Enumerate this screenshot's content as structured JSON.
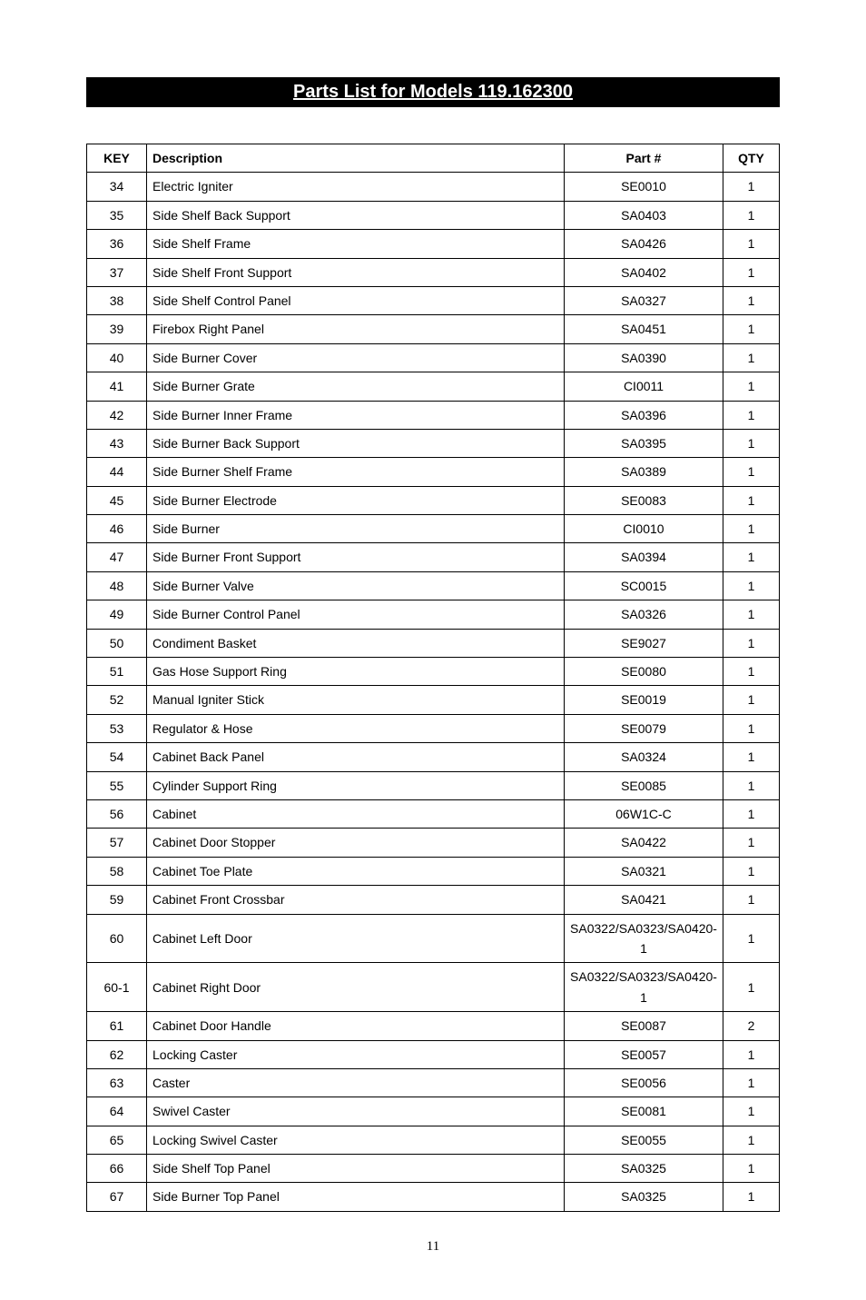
{
  "title": "Parts List for Models 119.162300",
  "columns": [
    "KEY",
    "Description",
    "Part #",
    "QTY"
  ],
  "rows": [
    {
      "key": "34",
      "description": "Electric Igniter",
      "part": "SE0010",
      "qty": "1"
    },
    {
      "key": "35",
      "description": "Side Shelf Back Support",
      "part": "SA0403",
      "qty": "1"
    },
    {
      "key": "36",
      "description": "Side Shelf Frame",
      "part": "SA0426",
      "qty": "1"
    },
    {
      "key": "37",
      "description": "Side Shelf Front Support",
      "part": "SA0402",
      "qty": "1"
    },
    {
      "key": "38",
      "description": "Side Shelf Control Panel",
      "part": "SA0327",
      "qty": "1"
    },
    {
      "key": "39",
      "description": "Firebox Right Panel",
      "part": "SA0451",
      "qty": "1"
    },
    {
      "key": "40",
      "description": "Side Burner Cover",
      "part": "SA0390",
      "qty": "1"
    },
    {
      "key": "41",
      "description": "Side Burner Grate",
      "part": "CI0011",
      "qty": "1"
    },
    {
      "key": "42",
      "description": "Side Burner Inner Frame",
      "part": "SA0396",
      "qty": "1"
    },
    {
      "key": "43",
      "description": "Side Burner Back Support",
      "part": "SA0395",
      "qty": "1"
    },
    {
      "key": "44",
      "description": "Side Burner Shelf Frame",
      "part": "SA0389",
      "qty": "1"
    },
    {
      "key": "45",
      "description": "Side Burner Electrode",
      "part": "SE0083",
      "qty": "1"
    },
    {
      "key": "46",
      "description": "Side Burner",
      "part": "CI0010",
      "qty": "1"
    },
    {
      "key": "47",
      "description": "Side Burner Front Support",
      "part": "SA0394",
      "qty": "1"
    },
    {
      "key": "48",
      "description": "Side Burner Valve",
      "part": "SC0015",
      "qty": "1"
    },
    {
      "key": "49",
      "description": "Side Burner Control Panel",
      "part": "SA0326",
      "qty": "1"
    },
    {
      "key": "50",
      "description": "Condiment Basket",
      "part": "SE9027",
      "qty": "1"
    },
    {
      "key": "51",
      "description": "Gas Hose Support Ring",
      "part": "SE0080",
      "qty": "1"
    },
    {
      "key": "52",
      "description": "Manual Igniter Stick",
      "part": "SE0019",
      "qty": "1"
    },
    {
      "key": "53",
      "description": "Regulator & Hose",
      "part": "SE0079",
      "qty": "1"
    },
    {
      "key": "54",
      "description": "Cabinet Back Panel",
      "part": "SA0324",
      "qty": "1"
    },
    {
      "key": "55",
      "description": "Cylinder Support Ring",
      "part": "SE0085",
      "qty": "1"
    },
    {
      "key": "56",
      "description": "Cabinet",
      "part": "06W1C-C",
      "qty": "1"
    },
    {
      "key": "57",
      "description": "Cabinet Door Stopper",
      "part": "SA0422",
      "qty": "1"
    },
    {
      "key": "58",
      "description": "Cabinet Toe Plate",
      "part": "SA0321",
      "qty": "1"
    },
    {
      "key": "59",
      "description": "Cabinet Front Crossbar",
      "part": "SA0421",
      "qty": "1"
    },
    {
      "key": "60",
      "description": "Cabinet Left Door",
      "part": "SA0322/SA0323/SA0420-1",
      "qty": "1"
    },
    {
      "key": "60-1",
      "description": "Cabinet Right Door",
      "part": "SA0322/SA0323/SA0420-1",
      "qty": "1"
    },
    {
      "key": "61",
      "description": "Cabinet Door Handle",
      "part": "SE0087",
      "qty": "2"
    },
    {
      "key": "62",
      "description": "Locking Caster",
      "part": "SE0057",
      "qty": "1"
    },
    {
      "key": "63",
      "description": "Caster",
      "part": "SE0056",
      "qty": "1"
    },
    {
      "key": "64",
      "description": "Swivel Caster",
      "part": "SE0081",
      "qty": "1"
    },
    {
      "key": "65",
      "description": "Locking Swivel Caster",
      "part": "SE0055",
      "qty": "1"
    },
    {
      "key": "66",
      "description": "Side Shelf Top Panel",
      "part": "SA0325",
      "qty": "1"
    },
    {
      "key": "67",
      "description": "Side Burner Top Panel",
      "part": "SA0325",
      "qty": "1"
    }
  ],
  "page_number": "11"
}
